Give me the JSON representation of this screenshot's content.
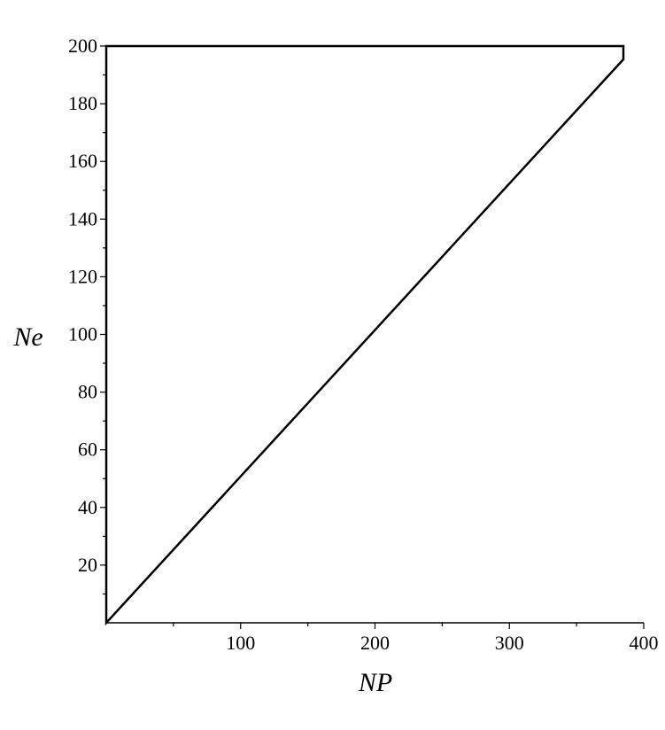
{
  "chart_data": {
    "type": "contour",
    "xlabel": "NP",
    "ylabel": "Ne",
    "xlim": [
      0,
      400
    ],
    "ylim": [
      0,
      200
    ],
    "x_ticks": [
      100,
      200,
      300,
      400
    ],
    "y_ticks": [
      20,
      40,
      60,
      80,
      100,
      120,
      140,
      160,
      180,
      200
    ],
    "domain": "Ne <= NP/2",
    "fill_colors": {
      "low": "#ffffff",
      "high": "#2b2be8"
    },
    "contour_line_color": "#000000",
    "grid": false,
    "legend": "none"
  }
}
